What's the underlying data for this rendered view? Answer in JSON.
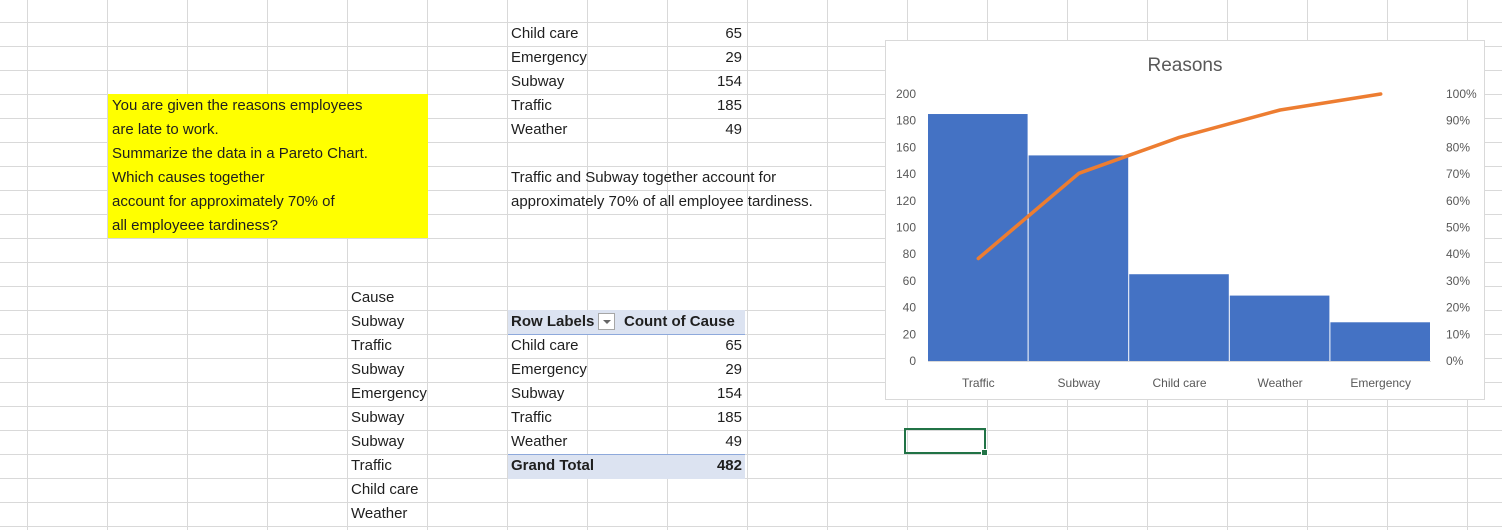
{
  "summary_table": [
    {
      "label": "Child care",
      "value": "65"
    },
    {
      "label": "Emergency",
      "value": "29"
    },
    {
      "label": "Subway",
      "value": "154"
    },
    {
      "label": "Traffic",
      "value": "185"
    },
    {
      "label": "Weather",
      "value": "49"
    }
  ],
  "instructions": [
    "You are given the reasons employees",
    "are late to work.",
    "Summarize the data in a Pareto Chart.",
    "Which causes together",
    "account for approximately 70% of",
    "all employeee tardiness?"
  ],
  "answer": [
    "Traffic and Subway together account for",
    "approximately  70% of all employee tardiness."
  ],
  "cause_column": {
    "header": "Cause",
    "values": [
      "Subway",
      "Traffic",
      "Subway",
      "Emergency",
      "Subway",
      "Subway",
      "Traffic",
      "Child care",
      "Weather"
    ]
  },
  "pivot": {
    "header_labels": "Row Labels",
    "header_count": "Count of Cause",
    "rows": [
      {
        "label": "Child care",
        "value": "65"
      },
      {
        "label": "Emergency",
        "value": "29"
      },
      {
        "label": "Subway",
        "value": "154"
      },
      {
        "label": "Traffic",
        "value": "185"
      },
      {
        "label": "Weather",
        "value": "49"
      }
    ],
    "total_label": "Grand Total",
    "total_value": "482"
  },
  "chart_data": {
    "type": "bar",
    "title": "Reasons",
    "categories": [
      "Traffic",
      "Subway",
      "Child care",
      "Weather",
      "Emergency"
    ],
    "series": [
      {
        "values": [
          185,
          154,
          65,
          49,
          29
        ],
        "kind": "bar",
        "color": "#4472c4"
      },
      {
        "values": [
          38.4,
          70.3,
          83.8,
          94.0,
          100.0
        ],
        "kind": "line",
        "axis": "secondary",
        "color": "#ed7d31"
      }
    ],
    "ylim": [
      0,
      200
    ],
    "y_ticks": [
      "0",
      "20",
      "40",
      "60",
      "80",
      "100",
      "120",
      "140",
      "160",
      "180",
      "200"
    ],
    "y2lim": [
      0,
      100
    ],
    "y2_ticks": [
      "0%",
      "10%",
      "20%",
      "30%",
      "40%",
      "50%",
      "60%",
      "70%",
      "80%",
      "90%",
      "100%"
    ],
    "grid": false,
    "legend": "none"
  }
}
